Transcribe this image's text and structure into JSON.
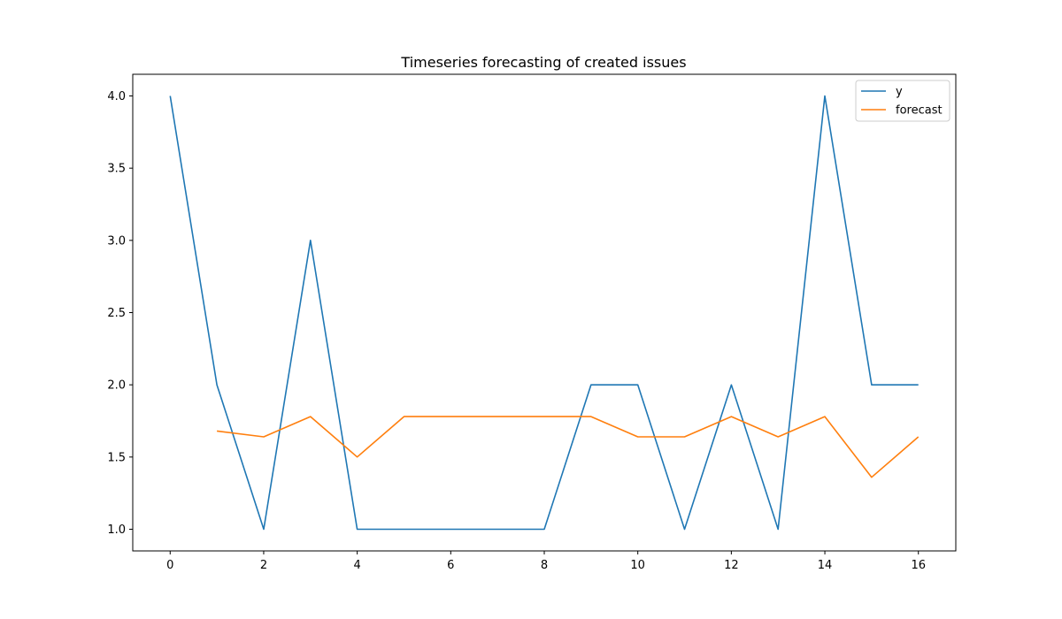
{
  "chart_data": {
    "type": "line",
    "title": "Timeseries forecasting of created issues",
    "xlabel": "",
    "ylabel": "",
    "xlim": [
      -0.8,
      16.8
    ],
    "ylim": [
      0.85,
      4.15
    ],
    "xticks": [
      0,
      2,
      4,
      6,
      8,
      10,
      12,
      14,
      16
    ],
    "xtick_labels": [
      "0",
      "2",
      "4",
      "6",
      "8",
      "10",
      "12",
      "14",
      "16"
    ],
    "yticks": [
      1.0,
      1.5,
      2.0,
      2.5,
      3.0,
      3.5,
      4.0
    ],
    "ytick_labels": [
      "1.0",
      "1.5",
      "2.0",
      "2.5",
      "3.0",
      "3.5",
      "4.0"
    ],
    "grid": false,
    "legend": "top-right",
    "series": [
      {
        "name": "y",
        "color": "#1f77b4",
        "x": [
          0,
          1,
          2,
          3,
          4,
          5,
          6,
          7,
          8,
          9,
          10,
          11,
          12,
          13,
          14,
          15,
          16
        ],
        "values": [
          4,
          2,
          1,
          3,
          1,
          1,
          1,
          1,
          1,
          2,
          2,
          1,
          2,
          1,
          4,
          2,
          2
        ]
      },
      {
        "name": "forecast",
        "color": "#ff7f0e",
        "x": [
          1,
          2,
          3,
          4,
          5,
          6,
          7,
          8,
          9,
          10,
          11,
          12,
          13,
          14,
          15,
          16
        ],
        "values": [
          1.68,
          1.64,
          1.78,
          1.5,
          1.78,
          1.78,
          1.78,
          1.78,
          1.78,
          1.64,
          1.64,
          1.78,
          1.64,
          1.78,
          1.36,
          1.64
        ]
      }
    ]
  }
}
